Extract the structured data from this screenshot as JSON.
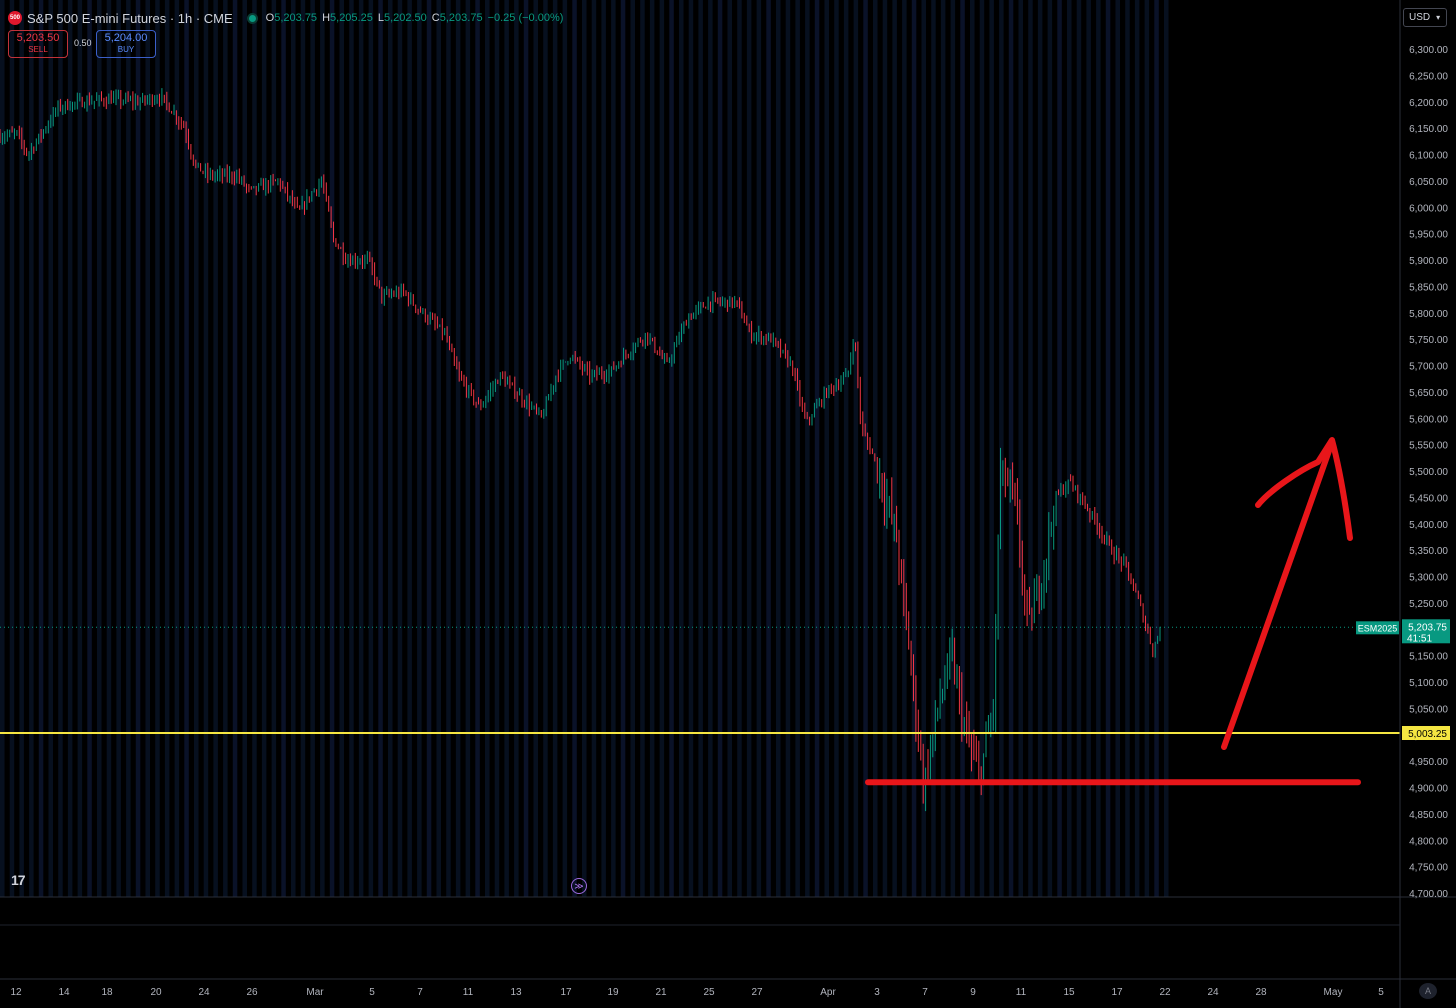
{
  "legend": {
    "symbol_icon": "500",
    "title": "S&P 500 E-mini Futures · 1h · CME",
    "open_label": "O",
    "open": "5,203.75",
    "high_label": "H",
    "high": "5,205.25",
    "low_label": "L",
    "low": "5,202.50",
    "close_label": "C",
    "close": "5,203.75",
    "change": "−0.25 (−0.00%)",
    "status_color": "#089981"
  },
  "trade": {
    "sell_price": "5,203.50",
    "sell_label": "SELL",
    "spread": "0.50",
    "buy_price": "5,204.00",
    "buy_label": "BUY"
  },
  "currency": "USD",
  "logo": "17",
  "auto_label": "A",
  "chart_data": {
    "type": "candlestick",
    "y_ticks": [
      "6,300.00",
      "6,250.00",
      "6,200.00",
      "6,150.00",
      "6,100.00",
      "6,050.00",
      "6,000.00",
      "5,950.00",
      "5,900.00",
      "5,850.00",
      "5,800.00",
      "5,750.00",
      "5,700.00",
      "5,650.00",
      "5,600.00",
      "5,550.00",
      "5,500.00",
      "5,450.00",
      "5,400.00",
      "5,350.00",
      "5,300.00",
      "5,250.00",
      "5,200.00",
      "5,150.00",
      "5,100.00",
      "5,050.00",
      "5,000.00",
      "4,950.00",
      "4,900.00",
      "4,850.00",
      "4,800.00",
      "4,750.00",
      "4,700.00"
    ],
    "ylim": [
      4700,
      6300
    ],
    "x_ticks": [
      "12",
      "14",
      "18",
      "20",
      "24",
      "26",
      "Mar",
      "5",
      "7",
      "11",
      "13",
      "17",
      "19",
      "21",
      "25",
      "27",
      "Apr",
      "3",
      "7",
      "9",
      "11",
      "15",
      "17",
      "22",
      "24",
      "28",
      "May",
      "5"
    ],
    "price_path": [
      [
        0,
        6135
      ],
      [
        0.012,
        6140
      ],
      [
        0.02,
        6100
      ],
      [
        0.03,
        6140
      ],
      [
        0.042,
        6190
      ],
      [
        0.06,
        6200
      ],
      [
        0.08,
        6205
      ],
      [
        0.1,
        6200
      ],
      [
        0.115,
        6210
      ],
      [
        0.125,
        6180
      ],
      [
        0.133,
        6150
      ],
      [
        0.14,
        6080
      ],
      [
        0.15,
        6060
      ],
      [
        0.17,
        6060
      ],
      [
        0.18,
        6030
      ],
      [
        0.2,
        6050
      ],
      [
        0.215,
        5990
      ],
      [
        0.225,
        6030
      ],
      [
        0.232,
        6050
      ],
      [
        0.24,
        5940
      ],
      [
        0.25,
        5900
      ],
      [
        0.265,
        5900
      ],
      [
        0.275,
        5830
      ],
      [
        0.29,
        5840
      ],
      [
        0.3,
        5810
      ],
      [
        0.32,
        5760
      ],
      [
        0.33,
        5680
      ],
      [
        0.345,
        5620
      ],
      [
        0.36,
        5680
      ],
      [
        0.375,
        5640
      ],
      [
        0.39,
        5600
      ],
      [
        0.4,
        5680
      ],
      [
        0.41,
        5720
      ],
      [
        0.425,
        5680
      ],
      [
        0.44,
        5690
      ],
      [
        0.45,
        5720
      ],
      [
        0.465,
        5760
      ],
      [
        0.48,
        5700
      ],
      [
        0.495,
        5790
      ],
      [
        0.51,
        5820
      ],
      [
        0.53,
        5820
      ],
      [
        0.54,
        5760
      ],
      [
        0.555,
        5750
      ],
      [
        0.57,
        5700
      ],
      [
        0.58,
        5590
      ],
      [
        0.595,
        5650
      ],
      [
        0.61,
        5680
      ],
      [
        0.615,
        5760
      ],
      [
        0.62,
        5580
      ],
      [
        0.63,
        5520
      ],
      [
        0.645,
        5380
      ],
      [
        0.655,
        5150
      ],
      [
        0.665,
        4900
      ],
      [
        0.675,
        5050
      ],
      [
        0.685,
        5150
      ],
      [
        0.695,
        5000
      ],
      [
        0.705,
        4920
      ],
      [
        0.715,
        5050
      ],
      [
        0.72,
        5500
      ],
      [
        0.73,
        5450
      ],
      [
        0.74,
        5200
      ],
      [
        0.75,
        5300
      ],
      [
        0.76,
        5450
      ],
      [
        0.77,
        5480
      ],
      [
        0.785,
        5420
      ],
      [
        0.8,
        5350
      ],
      [
        0.81,
        5320
      ],
      [
        0.82,
        5250
      ],
      [
        0.83,
        5160
      ],
      [
        0.835,
        5200
      ]
    ],
    "last_price": 5203.75,
    "last_label": "ESM2025",
    "last_price_label": "5,203.75",
    "countdown": "41:51",
    "horizontal_line": {
      "value": 5003.25,
      "label": "5,003.25",
      "color": "#f5e642"
    },
    "annotation_color": "#e8161a",
    "up_color": "#089981",
    "down_color": "#f23645",
    "grid": false
  }
}
